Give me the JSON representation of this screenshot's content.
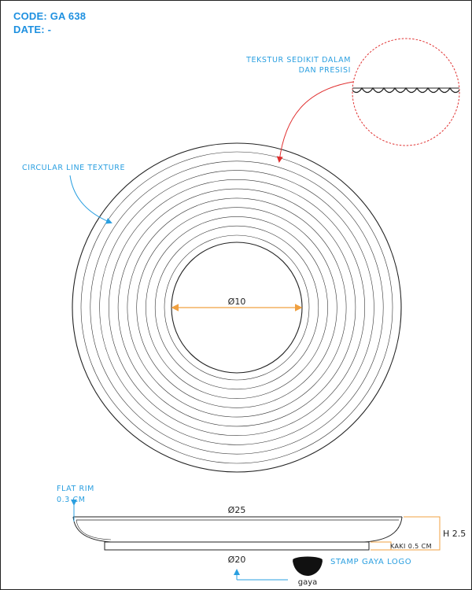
{
  "header": {
    "code": "CODE: GA 638",
    "date": "DATE: -"
  },
  "annotations": {
    "texture_detail": [
      "TEKSTUR SEDIKIT DALAM",
      "DAN PRESISI"
    ],
    "circular_texture": "CIRCULAR LINE TEXTURE",
    "flat_rim": [
      "FLAT RIM",
      "0.3 CM"
    ],
    "stamp_logo": "STAMP GAYA LOGO"
  },
  "dimensions": {
    "inner_diameter": "Ø10",
    "top_diameter": "Ø25",
    "base_diameter": "Ø20",
    "height": "H 2.5",
    "foot": "KAKI 0.5 CM"
  },
  "logo": {
    "text": "gaya"
  },
  "colors": {
    "header_blue": "#1e90e0",
    "note_blue": "#2a9fe0",
    "leader_red": "#e03030",
    "dimension_orange": "#f0a040",
    "line": "#222222"
  },
  "texture_ring_count": 10
}
